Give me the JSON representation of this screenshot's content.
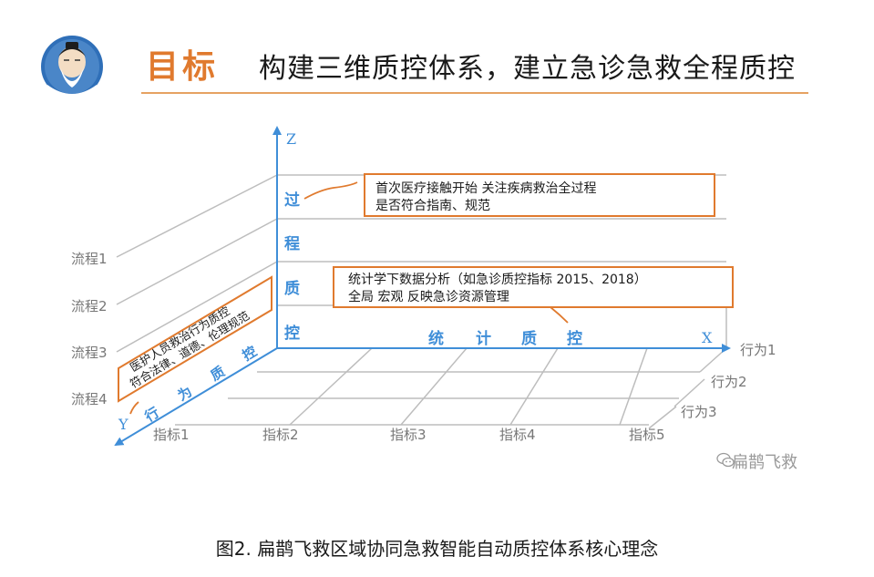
{
  "header": {
    "label": "目标",
    "title": "构建三维质控体系，建立急诊急救全程质控"
  },
  "axes": {
    "z": "Z",
    "x": "X",
    "y": "Y"
  },
  "z_axis_chars": [
    "过",
    "程",
    "质",
    "控"
  ],
  "x_axis_chars": [
    "统",
    "计",
    "质",
    "控"
  ],
  "y_axis_chars": [
    "行",
    "为",
    "质",
    "控"
  ],
  "flows": [
    "流程1",
    "流程2",
    "流程3",
    "流程4"
  ],
  "behaviors": [
    "行为1",
    "行为2",
    "行为3"
  ],
  "indicators": [
    "指标1",
    "指标2",
    "指标3",
    "指标4",
    "指标5"
  ],
  "callouts": {
    "process": [
      "首次医疗接触开始 关注疾病救治全过程",
      "是否符合指南、规范"
    ],
    "statistics": [
      "统计学下数据分析（如急诊质控指标 2015、2018）",
      "全局 宏观 反映急诊资源管理"
    ],
    "behavior": [
      "医护人员救治行为质控",
      "符合法律、道德、伦理规范"
    ]
  },
  "watermark": "扁鹊飞救",
  "caption": "图2. 扁鹊飞救区域协同急救智能自动质控体系核心理念",
  "colors": {
    "axis": "#3f8ed8",
    "accent": "#e07a2e",
    "grid": "#bdbdbd",
    "label_gray": "#777777"
  }
}
